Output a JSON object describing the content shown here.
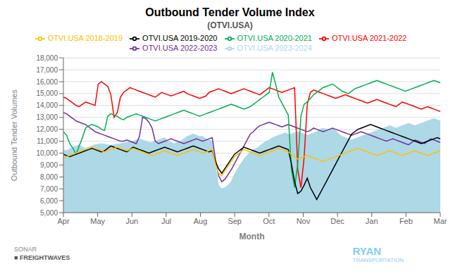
{
  "chart_data": {
    "type": "line",
    "title": "Outbound Tender Volume Index",
    "subtitle": "(OTVI.USA)",
    "xlabel": "Month",
    "ylabel": "Outbound Tender Volumes",
    "xlim": [
      0,
      11
    ],
    "xticks": [
      {
        "value": 0,
        "label": "Apr"
      },
      {
        "value": 1,
        "label": "May"
      },
      {
        "value": 2,
        "label": "Jun"
      },
      {
        "value": 3,
        "label": "Jul"
      },
      {
        "value": 4,
        "label": "Aug"
      },
      {
        "value": 5,
        "label": "Sep"
      },
      {
        "value": 6,
        "label": "Oct"
      },
      {
        "value": 7,
        "label": "Nov"
      },
      {
        "value": 8,
        "label": "Dec"
      },
      {
        "value": 9,
        "label": "Jan"
      },
      {
        "value": 10,
        "label": "Feb"
      },
      {
        "value": 11,
        "label": "Mar"
      }
    ],
    "ylim": [
      5000,
      18000
    ],
    "yticks": [
      {
        "value": 5000,
        "label": "5,000"
      },
      {
        "value": 6000,
        "label": "6,000"
      },
      {
        "value": 7000,
        "label": "7,000"
      },
      {
        "value": 8000,
        "label": "8,000"
      },
      {
        "value": 9000,
        "label": "9,000"
      },
      {
        "value": 10000,
        "label": "10,000"
      },
      {
        "value": 11000,
        "label": "11,000"
      },
      {
        "value": 12000,
        "label": "12,000"
      },
      {
        "value": 13000,
        "label": "13,000"
      },
      {
        "value": 14000,
        "label": "14,000"
      },
      {
        "value": 15000,
        "label": "15,000"
      },
      {
        "value": 16000,
        "label": "16,000"
      },
      {
        "value": 17000,
        "label": "17,000"
      },
      {
        "value": 18000,
        "label": "18,000"
      }
    ],
    "grid": true,
    "legend": "top",
    "annotations": [
      "SONAR",
      "■ FREIGHTWAVES",
      "RYAN",
      "TRANSPORTATION"
    ],
    "x": [
      0,
      0.0924,
      0.1849,
      0.2773,
      0.3697,
      0.4622,
      0.5546,
      0.6471,
      0.7395,
      0.8319,
      0.9244,
      1.0168,
      1.1092,
      1.2017,
      1.2941,
      1.3866,
      1.479,
      1.5714,
      1.6639,
      1.7563,
      1.8487,
      1.9412,
      2.0336,
      2.1261,
      2.2185,
      2.3109,
      2.4034,
      2.4958,
      2.5882,
      2.6807,
      2.7731,
      2.8655,
      2.958,
      3.0504,
      3.1429,
      3.2353,
      3.3277,
      3.4202,
      3.5126,
      3.605,
      3.6975,
      3.7899,
      3.8824,
      3.9748,
      4.0672,
      4.1597,
      4.2521,
      4.3445,
      4.437,
      4.5294,
      4.6218,
      4.7143,
      4.8067,
      4.8992,
      4.9916,
      5.084,
      5.1765,
      5.2689,
      5.3613,
      5.4538,
      5.5462,
      5.6387,
      5.7311,
      5.8235,
      5.916,
      6.0084,
      6.1008,
      6.1933,
      6.2857,
      6.3782,
      6.4706,
      6.563,
      6.6555,
      6.7479,
      6.8403,
      6.9328,
      7.0252,
      7.1176,
      7.2101,
      7.3025,
      7.395,
      7.4874,
      7.5798,
      7.6723,
      7.7647,
      7.8571,
      7.9496,
      8.042,
      8.1345,
      8.2269,
      8.3193,
      8.4118,
      8.5042,
      8.5966,
      8.6891,
      8.7815,
      8.8739,
      8.9664,
      9.0588,
      9.1513,
      9.2437,
      9.3361,
      9.4286,
      9.521,
      9.6134,
      9.7059,
      9.7983,
      9.8908,
      9.9832,
      10.0756,
      10.1681,
      10.2605,
      10.3529,
      10.4454,
      10.5378,
      10.6303,
      10.7227,
      10.8151,
      10.9076,
      11
    ],
    "series": [
      {
        "name": "OTVI.USA 2023-2024",
        "type": "area",
        "color": "#ADD8E6",
        "values": [
          10300,
          10200,
          10350,
          10500,
          10600,
          10700,
          10500,
          10400,
          10500,
          10600,
          10700,
          10750,
          10800,
          10750,
          10700,
          10650,
          10700,
          10750,
          10800,
          10850,
          10900,
          10950,
          11000,
          11100,
          11200,
          11100,
          11000,
          10900,
          10900,
          11000,
          11100,
          11200,
          11300,
          11000,
          10900,
          10800,
          10900,
          11000,
          11200,
          11400,
          11500,
          11600,
          11500,
          11400,
          11400,
          11200,
          11100,
          11000,
          8900,
          7300,
          7000,
          7100,
          7300,
          7600,
          8200,
          8700,
          9100,
          9500,
          9800,
          10100,
          10300,
          10400,
          10600,
          10800,
          11000,
          11100,
          11300,
          11400,
          11500,
          11600,
          11700,
          11600,
          11600,
          11700,
          11800,
          11700,
          11600,
          11500,
          11600,
          11700,
          11800,
          12000,
          12100,
          12000,
          12000,
          12100,
          11900,
          11600,
          11400,
          11300,
          11200,
          11100,
          11200,
          11300,
          11400,
          11500,
          11600,
          11700,
          11800,
          11900,
          12000,
          12100,
          12200,
          12300,
          12200,
          12100,
          12200,
          12300,
          12400,
          12500,
          12400,
          12300,
          12400,
          12500,
          12600,
          12700,
          12800,
          12900,
          12800,
          12700
        ]
      },
      {
        "name": "OTVI.USA 2022-2023",
        "type": "line",
        "color": "#7030A0",
        "values": [
          13400,
          13300,
          13100,
          12900,
          12700,
          12600,
          12500,
          12400,
          12200,
          12000,
          11800,
          11700,
          11600,
          11500,
          11400,
          11300,
          11200,
          11100,
          11000,
          11000,
          11100,
          11000,
          10900,
          10800,
          11400,
          13000,
          12900,
          12600,
          12100,
          11000,
          10800,
          10900,
          11000,
          11100,
          11200,
          11100,
          11000,
          10900,
          10800,
          10900,
          11000,
          11100,
          11200,
          11100,
          11000,
          11100,
          11200,
          11300,
          9500,
          8100,
          7600,
          7800,
          8200,
          8600,
          9100,
          9600,
          10100,
          10600,
          11100,
          11600,
          11800,
          12100,
          12300,
          12400,
          12500,
          12600,
          12500,
          12400,
          12300,
          12200,
          12300,
          12400,
          12300,
          12200,
          12100,
          12000,
          11900,
          11800,
          11900,
          12100,
          12000,
          11900,
          11800,
          11900,
          12000,
          12100,
          12000,
          11900,
          11800,
          11700,
          11600,
          11500,
          11600,
          11700,
          11800,
          11700,
          11600,
          11500,
          11400,
          11300,
          11200,
          11100,
          11000,
          11100,
          11200,
          11100,
          11000,
          10900,
          10800,
          10700,
          10900,
          11100,
          11000,
          10900,
          10800,
          11000,
          11200,
          11100,
          11000,
          10900
        ]
      },
      {
        "name": "OTVI.USA 2021-2022",
        "type": "line",
        "color": "#FF0000",
        "values": [
          14700,
          14600,
          14400,
          14200,
          14000,
          13900,
          14100,
          14300,
          14200,
          14100,
          14000,
          15800,
          16000,
          15800,
          15600,
          14900,
          13000,
          13400,
          14700,
          15100,
          15300,
          15500,
          15400,
          15300,
          15200,
          15100,
          15000,
          14900,
          14800,
          14700,
          14900,
          15100,
          15000,
          14900,
          14800,
          14900,
          15000,
          15100,
          15200,
          15000,
          14900,
          14800,
          14700,
          14600,
          14700,
          14800,
          15100,
          15200,
          15300,
          15400,
          15300,
          15200,
          15100,
          15000,
          15100,
          15200,
          15300,
          15400,
          15300,
          15200,
          15100,
          15000,
          14900,
          15100,
          15300,
          15500,
          15400,
          15300,
          15200,
          15100,
          15200,
          15300,
          15400,
          15500,
          8600,
          7100,
          9600,
          14100,
          15100,
          15300,
          15200,
          15100,
          15000,
          14900,
          14800,
          14700,
          14600,
          14700,
          14800,
          14900,
          14800,
          14700,
          14600,
          14500,
          14400,
          14300,
          14200,
          14300,
          14400,
          14500,
          14400,
          14300,
          14200,
          14100,
          14000,
          13900,
          14100,
          14300,
          14200,
          14100,
          14000,
          13900,
          13800,
          13700,
          13800,
          13900,
          13800,
          13700,
          13600,
          13500
        ]
      },
      {
        "name": "OTVI.USA 2020-2021",
        "type": "line",
        "color": "#00B050",
        "values": [
          11800,
          11500,
          10800,
          10400,
          9900,
          10600,
          11300,
          12100,
          12300,
          12400,
          12300,
          12200,
          12000,
          11900,
          13100,
          13300,
          13200,
          13100,
          12900,
          12800,
          13000,
          13100,
          13200,
          13300,
          13200,
          13100,
          13000,
          12900,
          12800,
          12700,
          12800,
          12900,
          13000,
          13100,
          13200,
          13300,
          13400,
          13500,
          13600,
          13500,
          13400,
          13300,
          13200,
          13100,
          13200,
          13300,
          13400,
          13500,
          13600,
          13700,
          13800,
          13900,
          14000,
          14100,
          14000,
          13900,
          13800,
          13700,
          13800,
          13900,
          14100,
          14300,
          14500,
          14700,
          14900,
          15100,
          16800,
          15800,
          14700,
          14200,
          13700,
          13200,
          8600,
          7100,
          9100,
          13100,
          14100,
          14300,
          14600,
          14900,
          15100,
          15300,
          15500,
          15600,
          15700,
          15800,
          15600,
          15400,
          15200,
          15100,
          15000,
          15200,
          15400,
          15500,
          15600,
          15700,
          15800,
          15900,
          16000,
          16100,
          16000,
          15900,
          15800,
          15700,
          15600,
          15500,
          15400,
          15300,
          15200,
          15300,
          15400,
          15500,
          15600,
          15700,
          15800,
          15900,
          16000,
          16100,
          16000,
          15900
        ]
      },
      {
        "name": "OTVI.USA 2019-2020",
        "type": "line",
        "color": "#000000",
        "values": [
          9900,
          9800,
          9700,
          9800,
          9900,
          10000,
          10100,
          10200,
          10300,
          10400,
          10300,
          10200,
          10100,
          10200,
          10400,
          10600,
          10500,
          10400,
          10300,
          10200,
          10100,
          10300,
          10500,
          10400,
          10300,
          10200,
          10100,
          10000,
          10100,
          10200,
          10300,
          10400,
          10500,
          10400,
          10300,
          10200,
          10100,
          10200,
          10300,
          10400,
          10500,
          10600,
          10500,
          10400,
          10300,
          10200,
          10100,
          10200,
          9300,
          8700,
          8300,
          8700,
          9100,
          9500,
          9900,
          10100,
          10300,
          10500,
          10400,
          10300,
          10200,
          10100,
          10000,
          10100,
          10200,
          10300,
          10400,
          10500,
          10600,
          10500,
          10400,
          10300,
          9100,
          7600,
          6600,
          6800,
          7300,
          7900,
          7100,
          6600,
          6100,
          6600,
          7100,
          7600,
          8100,
          8600,
          9100,
          9600,
          10100,
          10600,
          11100,
          11600,
          11800,
          12000,
          12100,
          12200,
          12300,
          12400,
          12300,
          12200,
          12100,
          12000,
          11900,
          11800,
          11700,
          11600,
          11500,
          11400,
          11300,
          11200,
          11100,
          11000,
          10900,
          10800,
          10900,
          11000,
          11100,
          11200,
          11300,
          11200
        ]
      },
      {
        "name": "OTVI.USA 2018-2019",
        "type": "line",
        "color": "#FFC000",
        "values": [
          9600,
          9700,
          9800,
          9900,
          10000,
          10100,
          10200,
          10300,
          10400,
          10500,
          10400,
          10300,
          10200,
          10100,
          10200,
          10300,
          10400,
          10500,
          10400,
          10300,
          10200,
          10300,
          10400,
          10300,
          10200,
          10100,
          10000,
          9900,
          9800,
          9900,
          10000,
          10100,
          10200,
          10100,
          10000,
          9900,
          9800,
          9900,
          10000,
          10100,
          10200,
          10300,
          10200,
          10100,
          10000,
          10100,
          10200,
          10300,
          9100,
          8300,
          8100,
          8500,
          8900,
          9300,
          9700,
          9900,
          10100,
          10300,
          10200,
          10100,
          10000,
          9900,
          9800,
          9900,
          10000,
          10100,
          10200,
          10300,
          10400,
          10300,
          10200,
          10100,
          9900,
          9700,
          9500,
          9600,
          9700,
          9800,
          9700,
          9600,
          9500,
          9400,
          9300,
          9400,
          9500,
          9600,
          9700,
          9800,
          9900,
          10000,
          10100,
          10200,
          10300,
          10400,
          10300,
          10200,
          10100,
          10000,
          9900,
          9800,
          9900,
          10000,
          10100,
          10200,
          10100,
          10000,
          9900,
          9800,
          9900,
          10000,
          10100,
          10200,
          10100,
          10000,
          9900,
          9800,
          9900,
          10000,
          10100,
          10200
        ]
      }
    ]
  }
}
